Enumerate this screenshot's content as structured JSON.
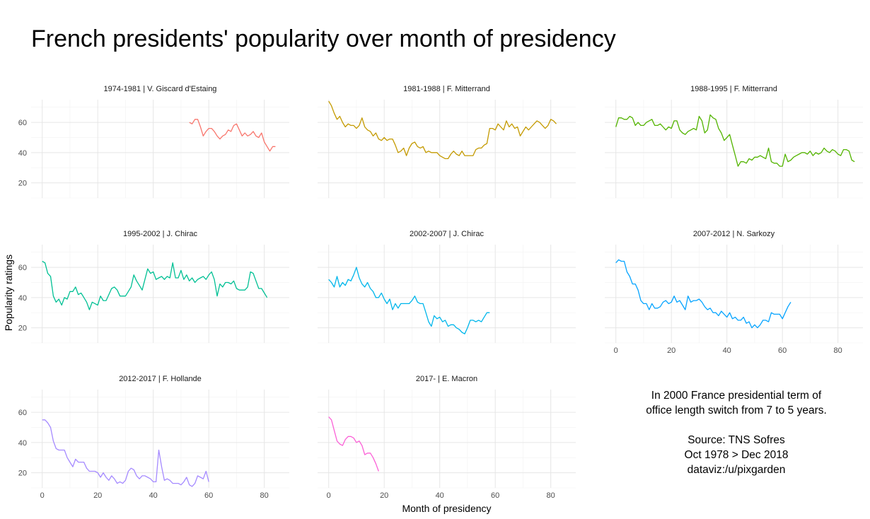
{
  "title": "French presidents' popularity over month of presidency",
  "note": {
    "lines": [
      "In 2000 France presidential term of",
      "office length switch from 7 to 5 years.",
      "",
      "Source: TNS Sofres",
      "Oct 1978 > Dec 2018",
      "dataviz:/u/pixgarden"
    ]
  },
  "chart_data": {
    "type": "line",
    "layout": "small-multiples",
    "title": "French presidents' popularity over month of presidency",
    "xlabel": "Month of presidency",
    "ylabel": "Popularity ratings",
    "xlim": [
      -4,
      89
    ],
    "ylim": [
      10,
      75
    ],
    "x_ticks": [
      0,
      20,
      40,
      60,
      80
    ],
    "y_ticks": [
      20,
      40,
      60
    ],
    "grid": true,
    "panels": [
      {
        "label": "1974-1981 | V. Giscard d'Estaing",
        "color": "#F8766D",
        "x_start": 53,
        "values": [
          60,
          59,
          62,
          62,
          57,
          51,
          54,
          56,
          56,
          54,
          51,
          49,
          51,
          52,
          55,
          54,
          58,
          59,
          55,
          51,
          53,
          51,
          52,
          54,
          51,
          50,
          53,
          47,
          44,
          41,
          44,
          44
        ]
      },
      {
        "label": "1981-1988 | F. Mitterrand",
        "color": "#C49A00",
        "x_start": 0,
        "values": [
          74,
          71,
          66,
          62,
          64,
          60,
          57,
          59,
          58,
          58,
          56,
          58,
          63,
          57,
          55,
          54,
          51,
          53,
          49,
          48,
          50,
          48,
          49,
          49,
          45,
          40,
          41,
          43,
          38,
          43,
          46,
          47,
          44,
          43,
          44,
          40,
          41,
          40,
          40,
          40,
          38,
          37,
          36,
          36,
          39,
          41,
          39,
          38,
          41,
          38,
          38,
          38,
          38,
          42,
          43,
          43,
          45,
          46,
          56,
          56,
          55,
          59,
          57,
          55,
          61,
          57,
          59,
          56,
          57,
          51,
          54,
          57,
          55,
          57,
          59,
          61,
          60,
          58,
          56,
          58,
          62,
          61,
          59
        ]
      },
      {
        "label": "1988-1995 | F. Mitterrand",
        "color": "#53B400",
        "x_start": 0,
        "values": [
          57,
          63,
          63,
          62,
          62,
          64,
          63,
          58,
          60,
          58,
          58,
          60,
          61,
          62,
          58,
          58,
          59,
          57,
          55,
          57,
          56,
          61,
          61,
          55,
          53,
          52,
          54,
          55,
          56,
          55,
          64,
          61,
          53,
          55,
          65,
          63,
          62,
          56,
          53,
          48,
          50,
          52,
          45,
          38,
          31,
          34,
          34,
          33,
          36,
          35,
          37,
          37,
          38,
          37,
          36,
          43,
          34,
          33,
          33,
          31,
          31,
          39,
          34,
          35,
          37,
          38,
          39,
          40,
          40,
          39,
          41,
          38,
          40,
          39,
          40,
          43,
          41,
          40,
          42,
          41,
          39,
          38,
          42,
          42,
          41,
          35,
          34
        ]
      },
      {
        "label": "1995-2002 | J. Chirac",
        "color": "#00C094",
        "x_start": 0,
        "values": [
          64,
          63,
          56,
          54,
          41,
          37,
          39,
          35,
          40,
          39,
          44,
          44,
          47,
          42,
          43,
          40,
          37,
          32,
          37,
          36,
          35,
          41,
          38,
          38,
          42,
          46,
          47,
          45,
          41,
          41,
          41,
          44,
          47,
          55,
          51,
          48,
          45,
          52,
          59,
          56,
          57,
          52,
          53,
          54,
          52,
          54,
          53,
          63,
          53,
          53,
          58,
          52,
          55,
          51,
          53,
          50,
          52,
          53,
          54,
          52,
          55,
          57,
          52,
          41,
          49,
          47,
          50,
          50,
          49,
          51,
          46,
          45,
          45,
          45,
          47,
          57,
          56,
          51,
          46,
          46,
          43,
          40
        ]
      },
      {
        "label": "2002-2007 | J. Chirac",
        "color": "#00B6EB",
        "x_start": 0,
        "values": [
          52,
          50,
          47,
          54,
          47,
          50,
          48,
          52,
          51,
          55,
          60,
          53,
          49,
          47,
          50,
          46,
          44,
          40,
          40,
          43,
          39,
          36,
          39,
          32,
          36,
          33,
          36,
          36,
          36,
          36,
          38,
          41,
          37,
          36,
          36,
          30,
          24,
          21,
          28,
          26,
          27,
          24,
          25,
          21,
          22,
          22,
          20,
          19,
          17,
          16,
          20,
          25,
          25,
          24,
          25,
          24,
          27,
          30,
          30
        ]
      },
      {
        "label": "2007-2012 | N. Sarkozy",
        "color": "#06A4FF",
        "x_start": 0,
        "values": [
          63,
          65,
          64,
          64,
          57,
          54,
          49,
          49,
          45,
          38,
          36,
          36,
          32,
          36,
          33,
          33,
          34,
          37,
          38,
          36,
          37,
          41,
          37,
          38,
          35,
          32,
          41,
          37,
          38,
          38,
          39,
          37,
          34,
          32,
          33,
          30,
          30,
          28,
          31,
          29,
          27,
          30,
          26,
          27,
          25,
          25,
          27,
          23,
          24,
          20,
          22,
          20,
          22,
          25,
          25,
          24,
          30,
          29,
          29,
          29,
          26,
          30,
          34,
          37
        ]
      },
      {
        "label": "2012-2017 | F. Hollande",
        "color": "#A58AFF",
        "x_start": 0,
        "values": [
          55,
          55,
          53,
          50,
          41,
          36,
          35,
          35,
          35,
          30,
          27,
          24,
          29,
          27,
          27,
          27,
          23,
          21,
          21,
          21,
          20,
          17,
          20,
          17,
          15,
          18,
          16,
          13,
          14,
          13,
          15,
          21,
          23,
          22,
          18,
          16,
          18,
          18,
          17,
          16,
          14,
          14,
          35,
          24,
          15,
          16,
          15,
          13,
          13,
          13,
          12,
          14,
          17,
          12,
          11,
          13,
          18,
          17,
          16,
          21,
          14
        ]
      },
      {
        "label": "2017- |  E. Macron",
        "color": "#FB61D7",
        "x_start": 0,
        "values": [
          57,
          55,
          48,
          41,
          39,
          38,
          42,
          44,
          44,
          43,
          40,
          41,
          38,
          32,
          33,
          33,
          30,
          26,
          21
        ]
      }
    ]
  }
}
